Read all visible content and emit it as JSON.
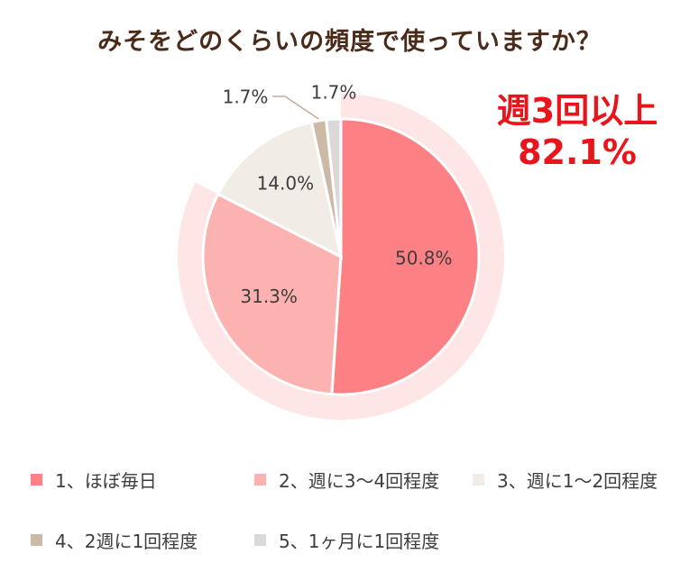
{
  "chart_data": {
    "type": "pie",
    "title": "みそをどのくらいの頻度で使っていますか？",
    "categories": [
      "1、ほぼ毎日",
      "2、週に3～4回程度",
      "3、週に1～2回程度",
      "4、2週に1回程度",
      "5、1ヶ月に1回程度"
    ],
    "values": [
      50.8,
      31.3,
      14.0,
      1.7,
      1.7
    ],
    "labels": [
      "50.8%",
      "31.3%",
      "14.0%",
      "1.7%",
      "1.7%"
    ],
    "colors": [
      "#fd8184",
      "#fdb2b2",
      "#f1ede6",
      "#cdbaa6",
      "#d9d9d9"
    ],
    "highlight": {
      "line1": "週3回以上",
      "line2": "82.1%",
      "value": 82.1,
      "color": "#fee5e6"
    },
    "legend_position": "bottom"
  }
}
